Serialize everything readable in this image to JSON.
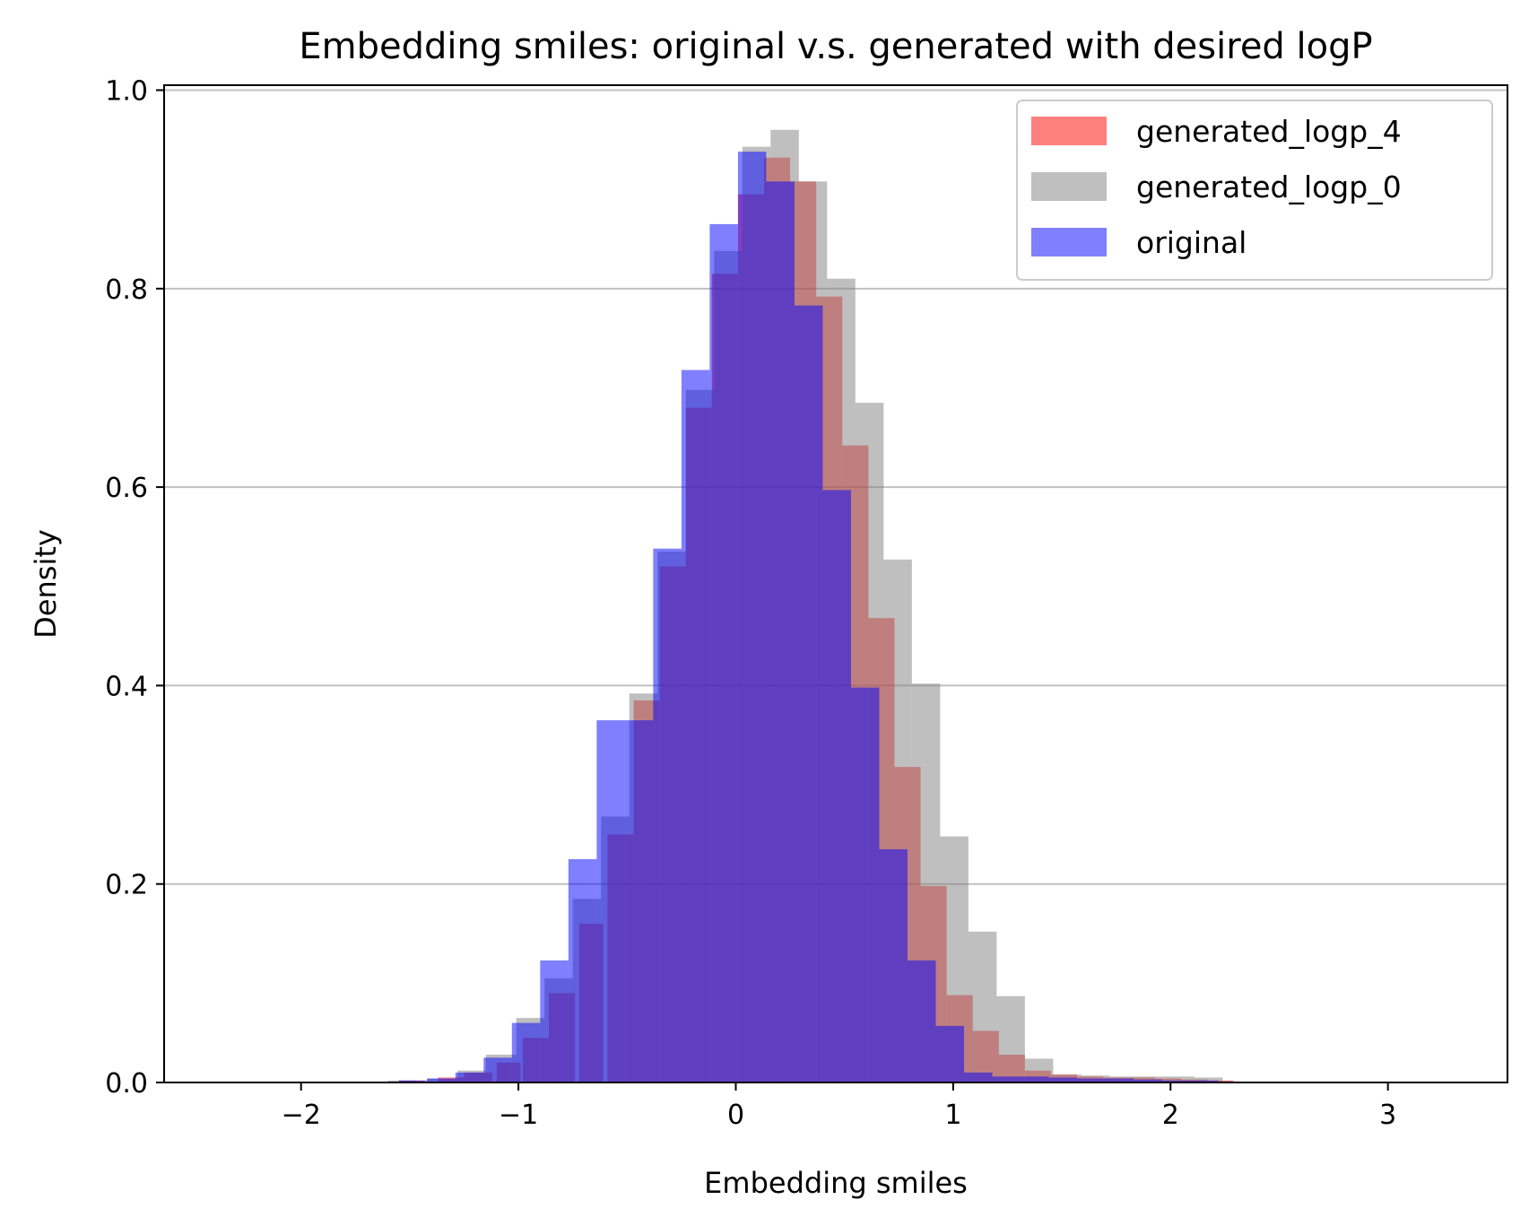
{
  "chart_data": {
    "type": "bar",
    "title": "Embedding smiles: original v.s. generated with desired logP",
    "xlabel": "Embedding smiles",
    "ylabel": "Density",
    "xlim": [
      -2.63,
      3.55
    ],
    "ylim": [
      0.0,
      1.005
    ],
    "x_ticks": [
      {
        "value": -2,
        "label": "−2"
      },
      {
        "value": -1,
        "label": "−1"
      },
      {
        "value": 0,
        "label": "0"
      },
      {
        "value": 1,
        "label": "1"
      },
      {
        "value": 2,
        "label": "2"
      },
      {
        "value": 3,
        "label": "3"
      }
    ],
    "y_ticks": [
      {
        "value": 0.0,
        "label": "0.0"
      },
      {
        "value": 0.2,
        "label": "0.2"
      },
      {
        "value": 0.4,
        "label": "0.4"
      },
      {
        "value": 0.6,
        "label": "0.6"
      },
      {
        "value": 0.8,
        "label": "0.8"
      },
      {
        "value": 1.0,
        "label": "1.0"
      }
    ],
    "grid": "y",
    "legend_position": "top-right",
    "series": [
      {
        "name": "generated_logp_4",
        "color": "#ff0000",
        "opacity": 0.5,
        "bins": [
          [
            -1.55,
            -1.43,
            0.002
          ],
          [
            -1.37,
            -1.25,
            0.005
          ],
          [
            -1.25,
            -1.12,
            0.01
          ],
          [
            -1.1,
            -0.99,
            0.02
          ],
          [
            -0.98,
            -0.86,
            0.045
          ],
          [
            -0.86,
            -0.74,
            0.09
          ],
          [
            -0.72,
            -0.61,
            0.16
          ],
          [
            -0.59,
            -0.47,
            0.25
          ],
          [
            -0.47,
            -0.35,
            0.385
          ],
          [
            -0.35,
            -0.23,
            0.52
          ],
          [
            -0.23,
            -0.11,
            0.68
          ],
          [
            -0.11,
            0.01,
            0.815
          ],
          [
            0.01,
            0.13,
            0.895
          ],
          [
            0.13,
            0.25,
            0.932
          ],
          [
            0.25,
            0.37,
            0.908
          ],
          [
            0.37,
            0.49,
            0.792
          ],
          [
            0.49,
            0.61,
            0.642
          ],
          [
            0.61,
            0.73,
            0.468
          ],
          [
            0.73,
            0.85,
            0.318
          ],
          [
            0.85,
            0.97,
            0.198
          ],
          [
            0.97,
            1.09,
            0.088
          ],
          [
            1.09,
            1.21,
            0.052
          ],
          [
            1.21,
            1.33,
            0.028
          ],
          [
            1.33,
            1.45,
            0.012
          ],
          [
            1.45,
            1.57,
            0.008
          ],
          [
            1.57,
            1.69,
            0.006
          ],
          [
            1.69,
            1.81,
            0.005
          ],
          [
            1.81,
            1.93,
            0.005
          ],
          [
            1.93,
            2.05,
            0.004
          ],
          [
            2.05,
            2.17,
            0.003
          ],
          [
            2.17,
            2.29,
            0.002
          ]
        ]
      },
      {
        "name": "generated_logp_0",
        "color": "#808080",
        "opacity": 0.5,
        "bins": [
          [
            -1.6,
            -1.47,
            0.002
          ],
          [
            -1.42,
            -1.28,
            0.004
          ],
          [
            -1.28,
            -1.15,
            0.012
          ],
          [
            -1.15,
            -1.01,
            0.028
          ],
          [
            -1.01,
            -0.88,
            0.065
          ],
          [
            -0.88,
            -0.75,
            0.105
          ],
          [
            -0.75,
            -0.62,
            0.185
          ],
          [
            -0.62,
            -0.49,
            0.268
          ],
          [
            -0.49,
            -0.36,
            0.392
          ],
          [
            -0.36,
            -0.23,
            0.535
          ],
          [
            -0.23,
            -0.1,
            0.698
          ],
          [
            -0.1,
            0.03,
            0.838
          ],
          [
            0.03,
            0.16,
            0.943
          ],
          [
            0.16,
            0.29,
            0.96
          ],
          [
            0.29,
            0.42,
            0.908
          ],
          [
            0.42,
            0.55,
            0.81
          ],
          [
            0.55,
            0.68,
            0.685
          ],
          [
            0.68,
            0.81,
            0.527
          ],
          [
            0.81,
            0.94,
            0.402
          ],
          [
            0.94,
            1.07,
            0.248
          ],
          [
            1.07,
            1.2,
            0.152
          ],
          [
            1.2,
            1.33,
            0.087
          ],
          [
            1.33,
            1.46,
            0.024
          ],
          [
            1.46,
            1.59,
            0.008
          ],
          [
            1.59,
            1.72,
            0.007
          ],
          [
            1.72,
            1.85,
            0.006
          ],
          [
            1.85,
            1.98,
            0.006
          ],
          [
            1.98,
            2.11,
            0.006
          ],
          [
            2.11,
            2.24,
            0.005
          ]
        ]
      },
      {
        "name": "original",
        "color": "#0000ff",
        "opacity": 0.5,
        "bins": [
          [
            -1.55,
            -1.42,
            0.002
          ],
          [
            -1.42,
            -1.29,
            0.004
          ],
          [
            -1.29,
            -1.16,
            0.01
          ],
          [
            -1.16,
            -1.03,
            0.025
          ],
          [
            -1.03,
            -0.9,
            0.06
          ],
          [
            -0.9,
            -0.77,
            0.123
          ],
          [
            -0.77,
            -0.64,
            0.225
          ],
          [
            -0.64,
            -0.51,
            0.365
          ],
          [
            -0.51,
            -0.38,
            0.365
          ],
          [
            -0.38,
            -0.25,
            0.538
          ],
          [
            -0.25,
            -0.12,
            0.718
          ],
          [
            -0.12,
            0.01,
            0.865
          ],
          [
            0.01,
            0.14,
            0.938
          ],
          [
            0.14,
            0.27,
            0.908
          ],
          [
            0.27,
            0.4,
            0.783
          ],
          [
            0.4,
            0.53,
            0.597
          ],
          [
            0.53,
            0.66,
            0.398
          ],
          [
            0.66,
            0.79,
            0.235
          ],
          [
            0.79,
            0.92,
            0.123
          ],
          [
            0.92,
            1.05,
            0.057
          ],
          [
            1.05,
            1.18,
            0.01
          ],
          [
            1.18,
            1.31,
            0.006
          ],
          [
            1.31,
            1.44,
            0.006
          ],
          [
            1.44,
            1.57,
            0.005
          ],
          [
            1.57,
            1.7,
            0.004
          ],
          [
            1.7,
            1.83,
            0.004
          ],
          [
            1.83,
            1.96,
            0.003
          ],
          [
            1.96,
            2.09,
            0.002
          ],
          [
            2.09,
            2.22,
            0.002
          ],
          [
            2.22,
            2.32,
            0.001
          ]
        ]
      }
    ]
  }
}
